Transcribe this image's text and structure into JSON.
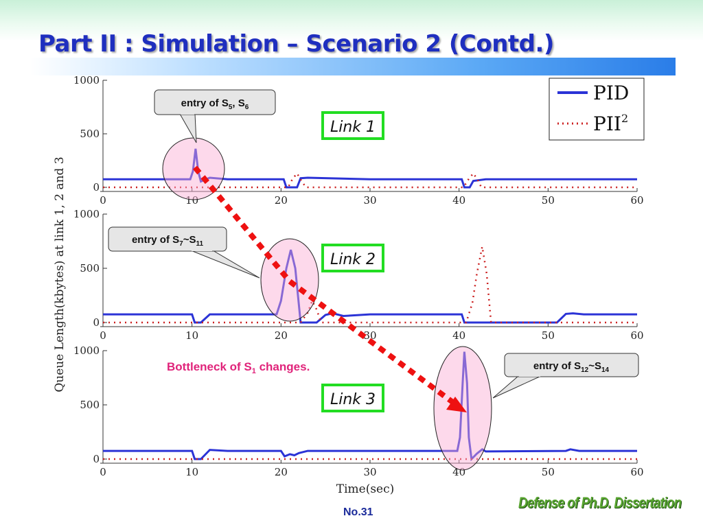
{
  "slide": {
    "title": "Part II : Simulation – Scenario 2 (Contd.)",
    "page_number": "No.31",
    "footer_brand": "Defense of Ph.D. Dissertation"
  },
  "colors": {
    "pid": "#2b33d6",
    "pii2": "#cc2020",
    "link_box": "#22dd22",
    "callout_arrow": "#ee1111"
  },
  "legend": [
    {
      "key": "pid",
      "name": "PID",
      "style": "solid"
    },
    {
      "key": "pii2",
      "name": "PII",
      "sup": "2",
      "style": "dotted"
    }
  ],
  "callouts": [
    {
      "id": "entry-s5-s6",
      "base": "entry of S",
      "sub1": "5",
      "mid": ", S",
      "sub2": "6"
    },
    {
      "id": "entry-s7-s11",
      "base": "entry of S",
      "sub1": "7",
      "mid": "~S",
      "sub2": "11"
    },
    {
      "id": "entry-s12-s14",
      "base": "entry of S",
      "sub1": "12",
      "mid": "~S",
      "sub2": "14"
    }
  ],
  "note": {
    "base": "Bottleneck of S",
    "sub": "1",
    "rest": " changes."
  },
  "chart_data": [
    {
      "type": "line",
      "label": "Link 1",
      "xlim": [
        0,
        60
      ],
      "ylim": [
        0,
        1000
      ],
      "xticks": [
        0,
        10,
        20,
        30,
        40,
        50,
        60
      ],
      "yticks": [
        0,
        500,
        1000
      ],
      "xlabel": "",
      "ylabel": "Queue Length(kbytes) at link 1, 2 and 3",
      "series": [
        {
          "name": "PID",
          "points": [
            [
              0,
              75
            ],
            [
              9.8,
              75
            ],
            [
              10.1,
              150
            ],
            [
              10.4,
              360
            ],
            [
              10.7,
              150
            ],
            [
              11,
              55
            ],
            [
              12,
              90
            ],
            [
              14,
              75
            ],
            [
              20.3,
              75
            ],
            [
              20.6,
              0
            ],
            [
              21.8,
              0
            ],
            [
              22.2,
              85
            ],
            [
              23,
              90
            ],
            [
              30,
              75
            ],
            [
              40.3,
              75
            ],
            [
              40.6,
              0
            ],
            [
              41.2,
              0
            ],
            [
              41.6,
              60
            ],
            [
              43,
              75
            ],
            [
              60,
              75
            ]
          ]
        },
        {
          "name": "PII2",
          "points": [
            [
              0,
              0
            ],
            [
              20.8,
              0
            ],
            [
              21.3,
              80
            ],
            [
              21.8,
              130
            ],
            [
              22.3,
              60
            ],
            [
              22.8,
              0
            ],
            [
              40.5,
              0
            ],
            [
              41.1,
              80
            ],
            [
              41.6,
              130
            ],
            [
              42.1,
              70
            ],
            [
              42.5,
              0
            ],
            [
              60,
              0
            ]
          ]
        }
      ]
    },
    {
      "type": "line",
      "label": "Link 2",
      "xlim": [
        0,
        60
      ],
      "ylim": [
        0,
        1000
      ],
      "xticks": [
        0,
        10,
        20,
        30,
        40,
        50,
        60
      ],
      "yticks": [
        0,
        500,
        1000
      ],
      "xlabel": "",
      "series": [
        {
          "name": "PID",
          "points": [
            [
              0,
              75
            ],
            [
              10,
              75
            ],
            [
              10.3,
              0
            ],
            [
              11,
              0
            ],
            [
              12,
              75
            ],
            [
              19.5,
              75
            ],
            [
              20,
              200
            ],
            [
              20.6,
              500
            ],
            [
              21.1,
              670
            ],
            [
              21.6,
              500
            ],
            [
              22.2,
              0
            ],
            [
              24,
              0
            ],
            [
              25,
              70
            ],
            [
              25.8,
              85
            ],
            [
              27,
              60
            ],
            [
              30,
              75
            ],
            [
              40.3,
              75
            ],
            [
              40.6,
              0
            ],
            [
              51,
              0
            ],
            [
              52,
              80
            ],
            [
              52.8,
              85
            ],
            [
              54,
              75
            ],
            [
              60,
              75
            ]
          ]
        },
        {
          "name": "PII2",
          "points": [
            [
              0,
              0
            ],
            [
              22.2,
              0
            ],
            [
              23,
              90
            ],
            [
              23.5,
              200
            ],
            [
              24,
              120
            ],
            [
              24.5,
              0
            ],
            [
              40.8,
              0
            ],
            [
              41.5,
              180
            ],
            [
              42,
              450
            ],
            [
              42.6,
              700
            ],
            [
              43.1,
              450
            ],
            [
              43.6,
              0
            ],
            [
              60,
              0
            ]
          ]
        }
      ]
    },
    {
      "type": "line",
      "label": "Link 3",
      "xlim": [
        0,
        60
      ],
      "ylim": [
        0,
        1000
      ],
      "xticks": [
        0,
        10,
        20,
        30,
        40,
        50,
        60
      ],
      "yticks": [
        0,
        500,
        1000
      ],
      "xlabel": "Time(sec)",
      "series": [
        {
          "name": "PID",
          "points": [
            [
              0,
              75
            ],
            [
              10,
              75
            ],
            [
              10.3,
              0
            ],
            [
              11,
              0
            ],
            [
              12,
              85
            ],
            [
              14,
              75
            ],
            [
              20,
              75
            ],
            [
              20.4,
              25
            ],
            [
              21,
              45
            ],
            [
              21.5,
              35
            ],
            [
              22,
              55
            ],
            [
              23,
              75
            ],
            [
              30,
              75
            ],
            [
              39.8,
              75
            ],
            [
              40.1,
              200
            ],
            [
              40.4,
              700
            ],
            [
              40.6,
              990
            ],
            [
              40.9,
              700
            ],
            [
              41.1,
              200
            ],
            [
              41.4,
              0
            ],
            [
              42,
              50
            ],
            [
              42.6,
              90
            ],
            [
              43,
              70
            ],
            [
              52,
              75
            ],
            [
              52.5,
              90
            ],
            [
              53.5,
              75
            ],
            [
              60,
              75
            ]
          ]
        },
        {
          "name": "PII2",
          "points": [
            [
              0,
              0
            ],
            [
              60,
              0
            ]
          ]
        }
      ]
    }
  ]
}
